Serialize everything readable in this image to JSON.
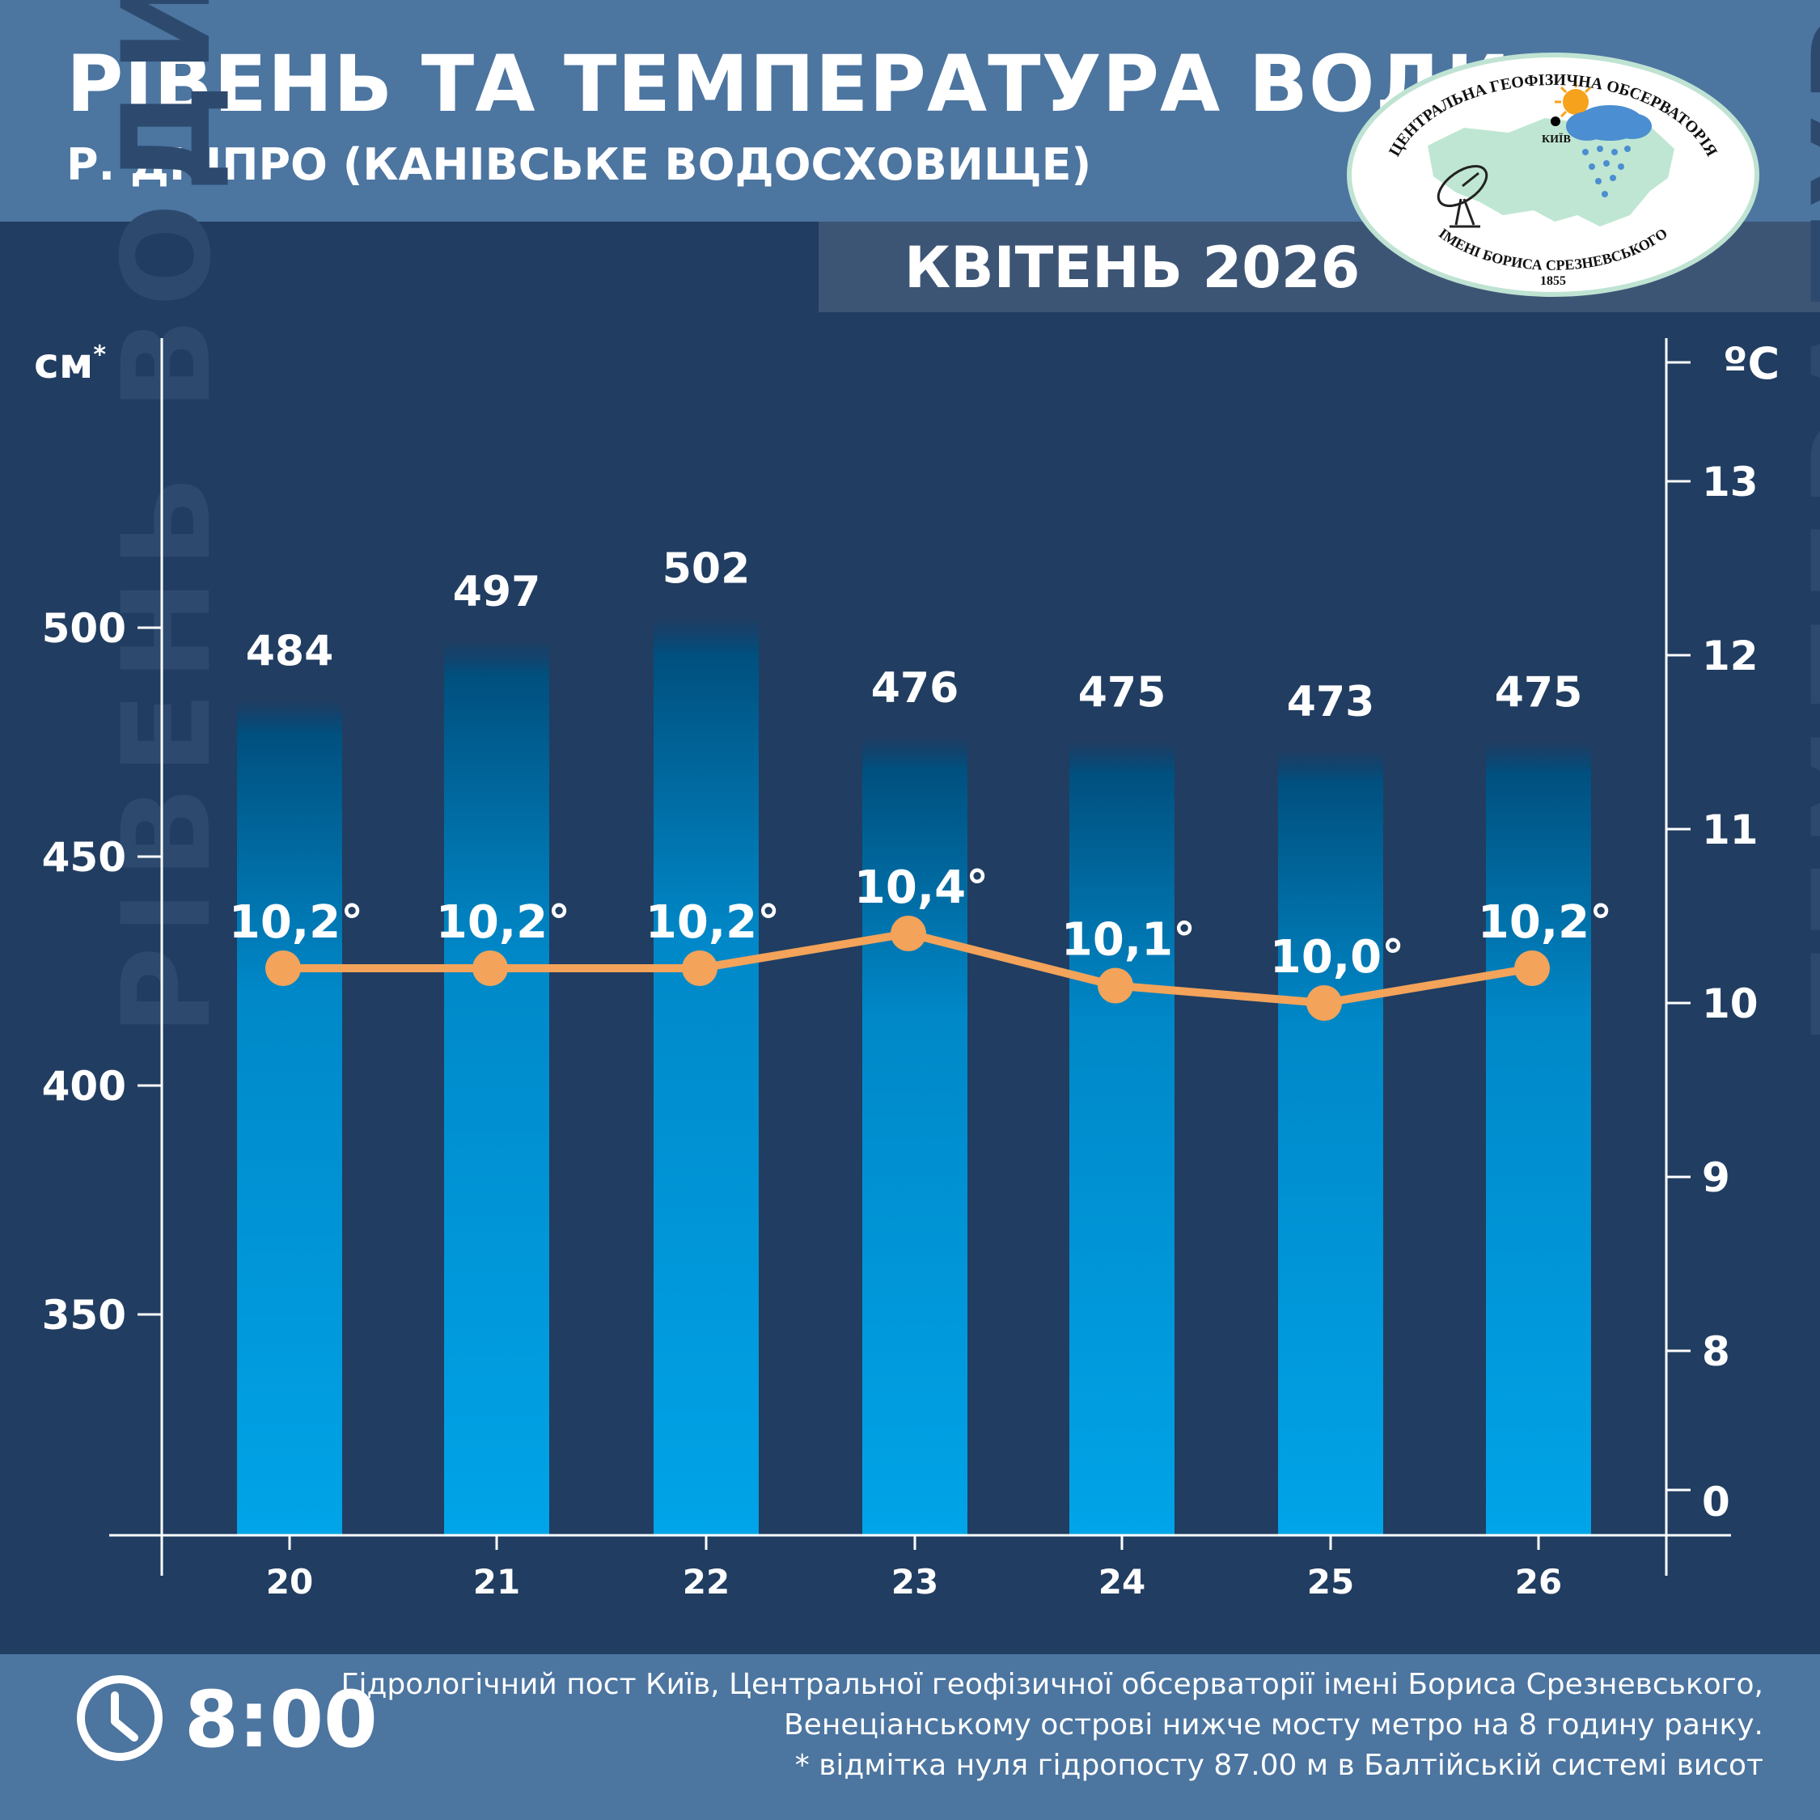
{
  "header": {
    "title": "РІВЕНЬ ТА ТЕМПЕРАТУРА ВОДИ",
    "subtitle": "Р. ДНІПРО (КАНІВСЬКЕ ВОДОСХОВИЩЕ)",
    "month": "КВІТЕНЬ 2026"
  },
  "logo": {
    "top_text": "ЦЕНТРАЛЬНА ГЕОФІЗИЧНА ОБСЕРВАТОРІЯ",
    "bottom_text": "ІМЕНІ БОРИСА СРЕЗНЕВСЬКОГО",
    "year": "1855",
    "city": "КИЇВ"
  },
  "axes": {
    "left_unit": "см",
    "left_unit_mark": "*",
    "right_unit": "ºC",
    "left_vertical_label": "РІВЕНЬ ВОДИ",
    "right_vertical_label": "ТЕМПЕРАТУРА ВОДИ"
  },
  "chart_data": {
    "type": "bar",
    "title": "РІВЕНЬ ТА ТЕМПЕРАТУРА ВОДИ",
    "xlabel": "",
    "categories": [
      "20",
      "21",
      "22",
      "23",
      "24",
      "25",
      "26"
    ],
    "series": [
      {
        "name": "Рівень води",
        "type": "bar",
        "axis": "left",
        "values": [
          484,
          497,
          502,
          476,
          475,
          473,
          475
        ],
        "labels": [
          "484",
          "497",
          "502",
          "476",
          "475",
          "473",
          "475"
        ]
      },
      {
        "name": "Температура води",
        "type": "line",
        "axis": "right",
        "values": [
          10.2,
          10.2,
          10.2,
          10.4,
          10.1,
          10.0,
          10.2
        ],
        "labels": [
          "10,2°",
          "10,2°",
          "10,2°",
          "10,4°",
          "10,1°",
          "10,0°",
          "10,2°"
        ]
      }
    ],
    "left_axis": {
      "ticks": [
        350,
        400,
        450,
        500
      ],
      "unit": "см"
    },
    "right_axis": {
      "ticks": [
        8,
        9,
        10,
        11,
        12,
        13
      ],
      "extra_tick": "0",
      "unit": "ºC"
    },
    "colors": {
      "bar_top": "#004b78",
      "bar_mid": "#008fd0",
      "bar_bottom": "#00a3e6",
      "line": "#f3a35a",
      "axis": "#ffffff",
      "background": "#213d61"
    }
  },
  "footer": {
    "time": "8:00",
    "note_line1": "Гідрологічний пост Київ, Центральної геофізичної обсерваторії імені Бориса Срезневського,",
    "note_line2": "Венеціанському острові нижче мосту метро  на 8 годину ранку.",
    "note_line3": "* відмітка нуля гідропосту 87.00 м в Балтійській системі висот"
  }
}
